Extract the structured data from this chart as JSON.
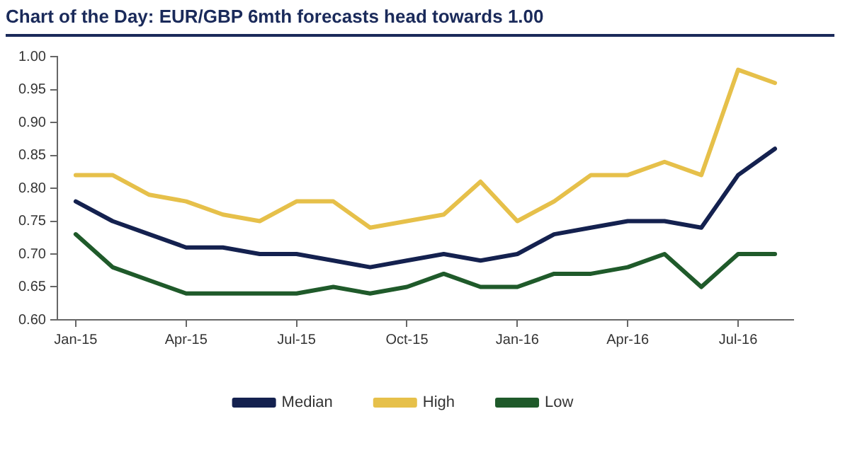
{
  "chart_data": {
    "type": "line",
    "title": "Chart of the Day: EUR/GBP 6mth forecasts head towards 1.00",
    "categories": [
      "Jan-15",
      null,
      null,
      "Apr-15",
      null,
      null,
      "Jul-15",
      null,
      null,
      "Oct-15",
      null,
      null,
      "Jan-16",
      null,
      null,
      "Apr-16",
      null,
      null,
      "Jul-16",
      null
    ],
    "series": [
      {
        "name": "Median",
        "color": "#14214f",
        "values": [
          0.78,
          0.75,
          0.73,
          0.71,
          0.71,
          0.7,
          0.7,
          0.69,
          0.68,
          0.69,
          0.7,
          0.69,
          0.7,
          0.73,
          0.74,
          0.75,
          0.75,
          0.74,
          0.82,
          0.86
        ]
      },
      {
        "name": "High",
        "color": "#e6c04a",
        "values": [
          0.82,
          0.82,
          0.79,
          0.78,
          0.76,
          0.75,
          0.78,
          0.78,
          0.74,
          0.75,
          0.76,
          0.81,
          0.75,
          0.78,
          0.82,
          0.82,
          0.84,
          0.82,
          0.98,
          0.96
        ]
      },
      {
        "name": "Low",
        "color": "#1f5a2a",
        "values": [
          0.73,
          0.68,
          0.66,
          0.64,
          0.64,
          0.64,
          0.64,
          0.65,
          0.64,
          0.65,
          0.67,
          0.65,
          0.65,
          0.67,
          0.67,
          0.68,
          0.7,
          0.65,
          0.7,
          0.7
        ]
      }
    ],
    "ylim": [
      0.6,
      1.0
    ],
    "yticks": [
      {
        "value": 0.6,
        "label": "0.60"
      },
      {
        "value": 0.65,
        "label": "0.65"
      },
      {
        "value": 0.7,
        "label": "0.70"
      },
      {
        "value": 0.75,
        "label": "0.75"
      },
      {
        "value": 0.8,
        "label": "0.80"
      },
      {
        "value": 0.85,
        "label": "0.85"
      },
      {
        "value": 0.9,
        "label": "0.90"
      },
      {
        "value": 0.95,
        "label": "0.95"
      },
      {
        "value": 1.0,
        "label": "1.00"
      }
    ],
    "grid": false,
    "legend": "bottom",
    "marker": "none",
    "line_style": "solid"
  }
}
